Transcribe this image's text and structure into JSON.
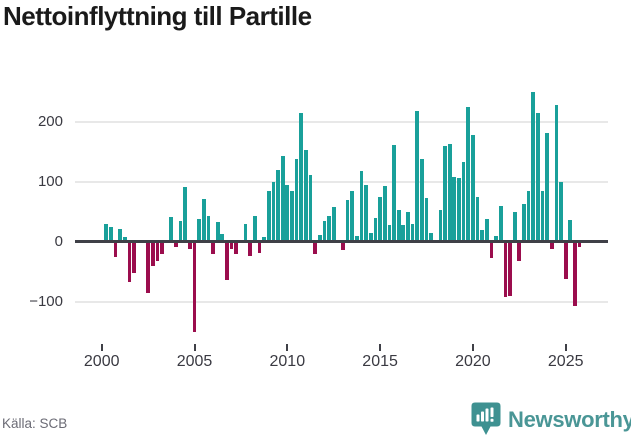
{
  "title": "Nettoinflyttning till Partille",
  "source": "Källa: SCB",
  "branding": {
    "name": "Newsworthy",
    "icon": "newsworthy-bubble-chart-icon",
    "wordmark_color": "#4A9696",
    "icon_color": "#3E9191"
  },
  "chart_data": {
    "type": "bar",
    "title": "Nettoinflyttning till Partille",
    "frequency": "quarterly",
    "start_year": 2000,
    "start_quarter": 1,
    "values": [
      0,
      29,
      25,
      -26,
      21,
      8,
      -68,
      -53,
      0,
      3,
      -85,
      -40,
      -33,
      -20,
      0,
      41,
      -9,
      35,
      91,
      -12,
      -150,
      38,
      71,
      43,
      -20,
      33,
      13,
      -64,
      -12,
      -20,
      0,
      29,
      -24,
      43,
      -19,
      8,
      84,
      100,
      120,
      143,
      95,
      84,
      137,
      215,
      152,
      111,
      -20,
      11,
      35,
      42,
      57,
      0,
      -14,
      70,
      85,
      10,
      118,
      94,
      15,
      40,
      74,
      92,
      27,
      161,
      52,
      27,
      50,
      30,
      217,
      137,
      72,
      14,
      0,
      52,
      160,
      163,
      108,
      106,
      133,
      225,
      177,
      74,
      20,
      38,
      -28,
      9,
      59,
      -93,
      -91,
      50,
      -32,
      63,
      85,
      249,
      214,
      85,
      181,
      -12,
      228,
      100,
      -62,
      36,
      -107,
      -9
    ],
    "x_ticks": [
      2000,
      2005,
      2010,
      2015,
      2020,
      2025
    ],
    "y_ticks": [
      200,
      100,
      0,
      -100
    ],
    "ylim": [
      -165,
      265
    ],
    "grid": "horizontal",
    "legend": "none",
    "colors": {
      "positive": "#19A09A",
      "negative": "#9B0D4D",
      "axis": "#3F4047",
      "grid": "#E8E8E8",
      "tick_label": "#3A3A42"
    }
  }
}
